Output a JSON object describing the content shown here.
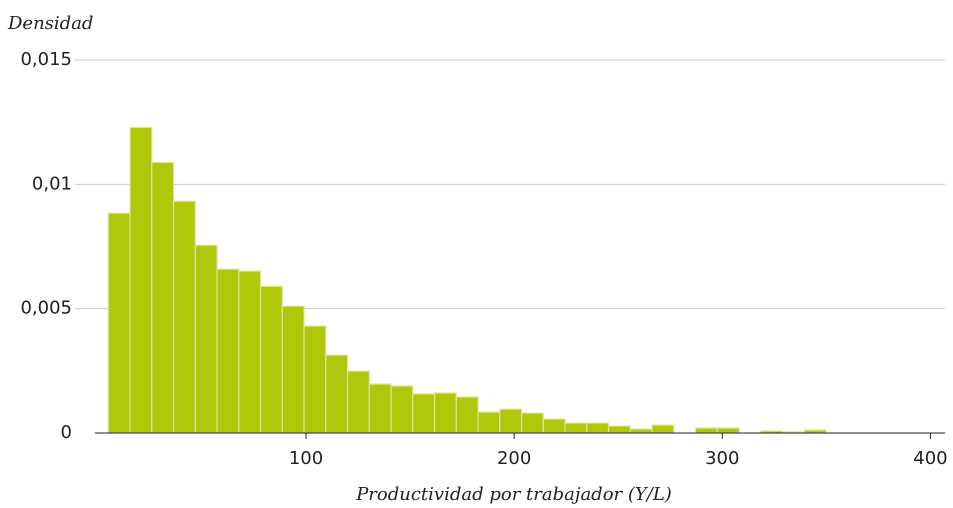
{
  "chart_data": {
    "type": "histogram",
    "y_label": "Densidad",
    "x_label": "Productividad por trabajador (Y/L)",
    "bins": [
      5,
      15.45,
      25.9,
      36.35,
      46.8,
      57.25,
      67.7,
      78.15,
      88.6,
      99.05,
      109.5,
      119.95,
      130.4,
      140.85,
      151.3,
      161.75,
      172.2,
      182.65,
      193.1,
      203.55,
      214,
      224.45,
      234.9,
      245.35,
      255.8,
      266.25,
      276.7,
      287.15,
      297.6,
      308.05,
      318.5,
      328.95,
      339.4,
      349.85
    ],
    "values": [
      0.00884,
      0.01229,
      0.01088,
      0.00932,
      0.00755,
      0.00659,
      0.00651,
      0.0059,
      0.0051,
      0.0043,
      0.00313,
      0.00249,
      0.00197,
      0.00189,
      0.00157,
      0.00161,
      0.00145,
      0.00084,
      0.00096,
      0.0008,
      0.00056,
      0.0004,
      0.0004,
      0.00028,
      0.00016,
      0.00032,
      0,
      0.0002,
      0.0002,
      0,
      8e-05,
      4e-05,
      0.00012
    ],
    "color": "#afc80a",
    "xlim": [
      -11,
      407
    ],
    "xticks": [
      100,
      200,
      300,
      400
    ],
    "ylim": [
      0,
      0.015
    ],
    "yticks": [
      0,
      {
        "value": 0.005,
        "label": "0,005"
      },
      {
        "value": 0.01,
        "label": "0,01"
      },
      {
        "value": 0.015,
        "label": "0,015"
      }
    ],
    "grid": true
  }
}
